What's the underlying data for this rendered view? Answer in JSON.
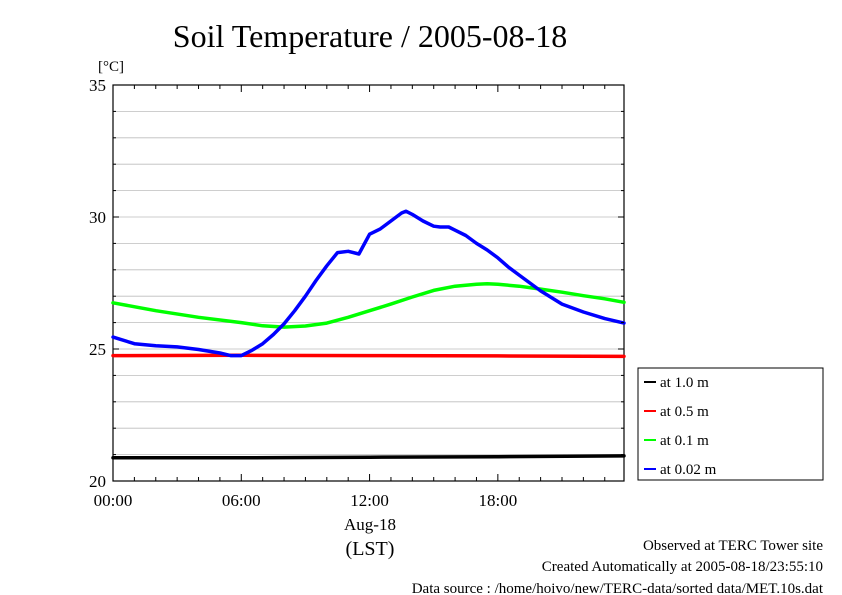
{
  "chart_data": {
    "type": "line",
    "title": "Soil Temperature / 2005-08-18",
    "yunit": "[°C]",
    "ylim": [
      20,
      35
    ],
    "xlim": [
      0,
      23.9
    ],
    "yticks": [
      {
        "value": 20,
        "label": "20"
      },
      {
        "value": 25,
        "label": "25"
      },
      {
        "value": 30,
        "label": "30"
      },
      {
        "value": 35,
        "label": "35"
      }
    ],
    "xticks": [
      {
        "value": 0,
        "label": "00:00"
      },
      {
        "value": 6,
        "label": "06:00"
      },
      {
        "value": 12,
        "label": "12:00"
      },
      {
        "value": 18,
        "label": "18:00"
      }
    ],
    "xlabel_date": "Aug-18",
    "xlabel_tz": "(LST)",
    "grid": true,
    "legend_position": "right",
    "series": [
      {
        "name": "at 1.0 m",
        "color": "#000000",
        "x": [
          0,
          6,
          12,
          18,
          23.9
        ],
        "y": [
          20.88,
          20.88,
          20.9,
          20.92,
          20.95
        ]
      },
      {
        "name": "at 0.5 m",
        "color": "#ff0000",
        "x": [
          0,
          6,
          12,
          18,
          23.9
        ],
        "y": [
          24.75,
          24.76,
          24.75,
          24.74,
          24.72
        ]
      },
      {
        "name": "at 0.1 m",
        "color": "#00ff00",
        "x": [
          0,
          2,
          4,
          6,
          7,
          8,
          9,
          10,
          11,
          12,
          13,
          14,
          15,
          16,
          17,
          17.5,
          18,
          19,
          20,
          21,
          22,
          23,
          23.9
        ],
        "y": [
          26.75,
          26.45,
          26.2,
          26.0,
          25.88,
          25.83,
          25.87,
          25.98,
          26.2,
          26.45,
          26.7,
          26.97,
          27.22,
          27.38,
          27.45,
          27.47,
          27.45,
          27.38,
          27.27,
          27.15,
          27.02,
          26.9,
          26.77
        ]
      },
      {
        "name": "at 0.02 m",
        "color": "#0000ff",
        "x": [
          0,
          1,
          2,
          3,
          4,
          5,
          5.5,
          6,
          6.5,
          7,
          7.5,
          8,
          8.5,
          9,
          9.5,
          10,
          10.5,
          11,
          11.5,
          12,
          12.5,
          13,
          13.5,
          13.7,
          14,
          14.5,
          15,
          15.3,
          15.7,
          16,
          16.5,
          17,
          17.5,
          18,
          18.5,
          19,
          19.5,
          20,
          21,
          22,
          23,
          23.9
        ],
        "y": [
          25.45,
          25.2,
          25.12,
          25.08,
          24.98,
          24.85,
          24.75,
          24.75,
          24.95,
          25.2,
          25.55,
          25.95,
          26.45,
          27.0,
          27.6,
          28.15,
          28.65,
          28.7,
          28.6,
          29.35,
          29.55,
          29.85,
          30.15,
          30.22,
          30.1,
          29.85,
          29.65,
          29.62,
          29.62,
          29.5,
          29.3,
          29.0,
          28.75,
          28.45,
          28.1,
          27.8,
          27.5,
          27.2,
          26.7,
          26.4,
          26.15,
          25.98
        ]
      }
    ],
    "footer": {
      "line1": "Observed at TERC Tower site",
      "line2": "Created Automatically at 2005-08-18/23:55:10",
      "line3": "Data source : /home/hoivo/new/TERC-data/sorted  data/MET.10s.dat"
    }
  }
}
